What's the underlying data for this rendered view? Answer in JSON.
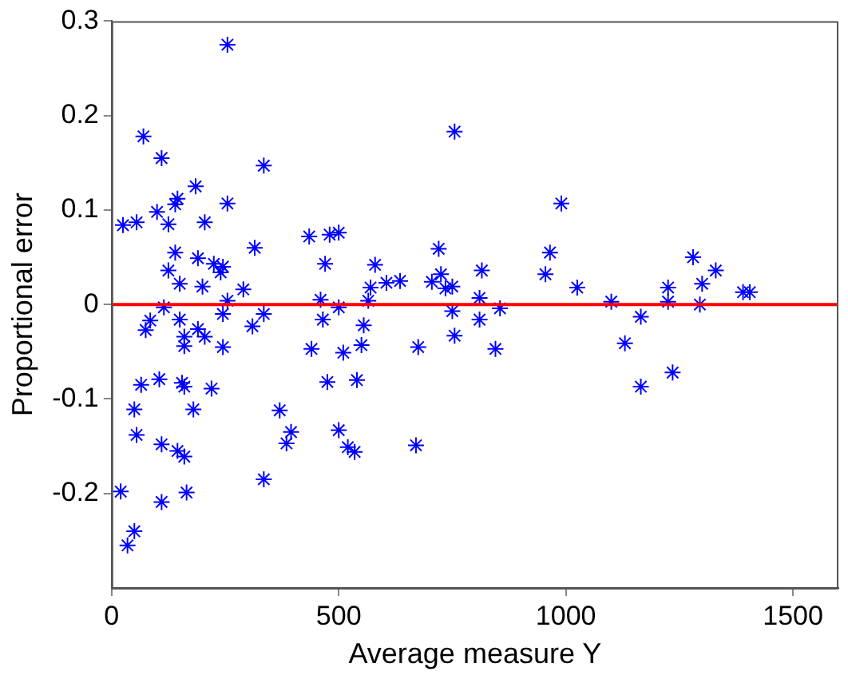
{
  "chart_data": {
    "type": "scatter",
    "xlabel": "Average measure Y",
    "ylabel": "Proportional error",
    "xlim": [
      0,
      1600
    ],
    "ylim": [
      -0.3,
      0.3
    ],
    "xticks": [
      0,
      500,
      1000,
      1500
    ],
    "yticks": [
      -0.2,
      -0.1,
      0,
      0.1,
      0.2,
      0.3
    ],
    "grid": false,
    "legend": false,
    "marker": "cross",
    "ref_lines": [
      {
        "axis": "y",
        "value": 0,
        "color": "#ff0000"
      }
    ],
    "series": [
      {
        "color": "#0000ff",
        "x": [
          255,
          70,
          110,
          335,
          185,
          145,
          140,
          255,
          100,
          25,
          55,
          125,
          205,
          315,
          140,
          190,
          125,
          225,
          245,
          240,
          150,
          200,
          290,
          255,
          115,
          85,
          75,
          150,
          245,
          335,
          310,
          190,
          160,
          205,
          160,
          245,
          65,
          105,
          155,
          160,
          220,
          50,
          180,
          370,
          55,
          110,
          145,
          160,
          385,
          335,
          20,
          110,
          165,
          50,
          35,
          755,
          435,
          480,
          500,
          470,
          580,
          720,
          725,
          705,
          735,
          750,
          605,
          635,
          570,
          565,
          815,
          810,
          965,
          955,
          460,
          500,
          465,
          555,
          750,
          810,
          855,
          755,
          550,
          440,
          510,
          675,
          845,
          475,
          540,
          395,
          500,
          520,
          535,
          670,
          990,
          1025,
          1100,
          1165,
          1130,
          1165,
          1235,
          1225,
          1225,
          1280,
          1330,
          1300,
          1295,
          1390,
          1405
        ],
        "values": [
          0.275,
          0.178,
          0.155,
          0.147,
          0.125,
          0.112,
          0.106,
          0.107,
          0.098,
          0.084,
          0.087,
          0.085,
          0.087,
          0.06,
          0.055,
          0.049,
          0.036,
          0.043,
          0.04,
          0.034,
          0.022,
          0.019,
          0.016,
          0.004,
          -0.003,
          -0.017,
          -0.027,
          -0.016,
          -0.01,
          -0.01,
          -0.023,
          -0.026,
          -0.034,
          -0.034,
          -0.044,
          -0.045,
          -0.085,
          -0.079,
          -0.083,
          -0.087,
          -0.089,
          -0.111,
          -0.111,
          -0.112,
          -0.138,
          -0.148,
          -0.155,
          -0.161,
          -0.147,
          -0.185,
          -0.198,
          -0.209,
          -0.199,
          -0.24,
          -0.255,
          0.183,
          0.072,
          0.074,
          0.076,
          0.043,
          0.042,
          0.059,
          0.032,
          0.024,
          0.017,
          0.019,
          0.023,
          0.025,
          0.018,
          0.004,
          0.036,
          0.007,
          0.055,
          0.032,
          0.005,
          -0.003,
          -0.016,
          -0.022,
          -0.007,
          -0.016,
          -0.004,
          -0.033,
          -0.043,
          -0.047,
          -0.051,
          -0.045,
          -0.047,
          -0.082,
          -0.08,
          -0.135,
          -0.133,
          -0.151,
          -0.156,
          -0.149,
          0.107,
          0.018,
          0.003,
          -0.013,
          -0.041,
          -0.087,
          -0.072,
          0.018,
          0.003,
          0.05,
          0.036,
          0.022,
          0,
          0.013,
          0.013
        ]
      }
    ]
  }
}
